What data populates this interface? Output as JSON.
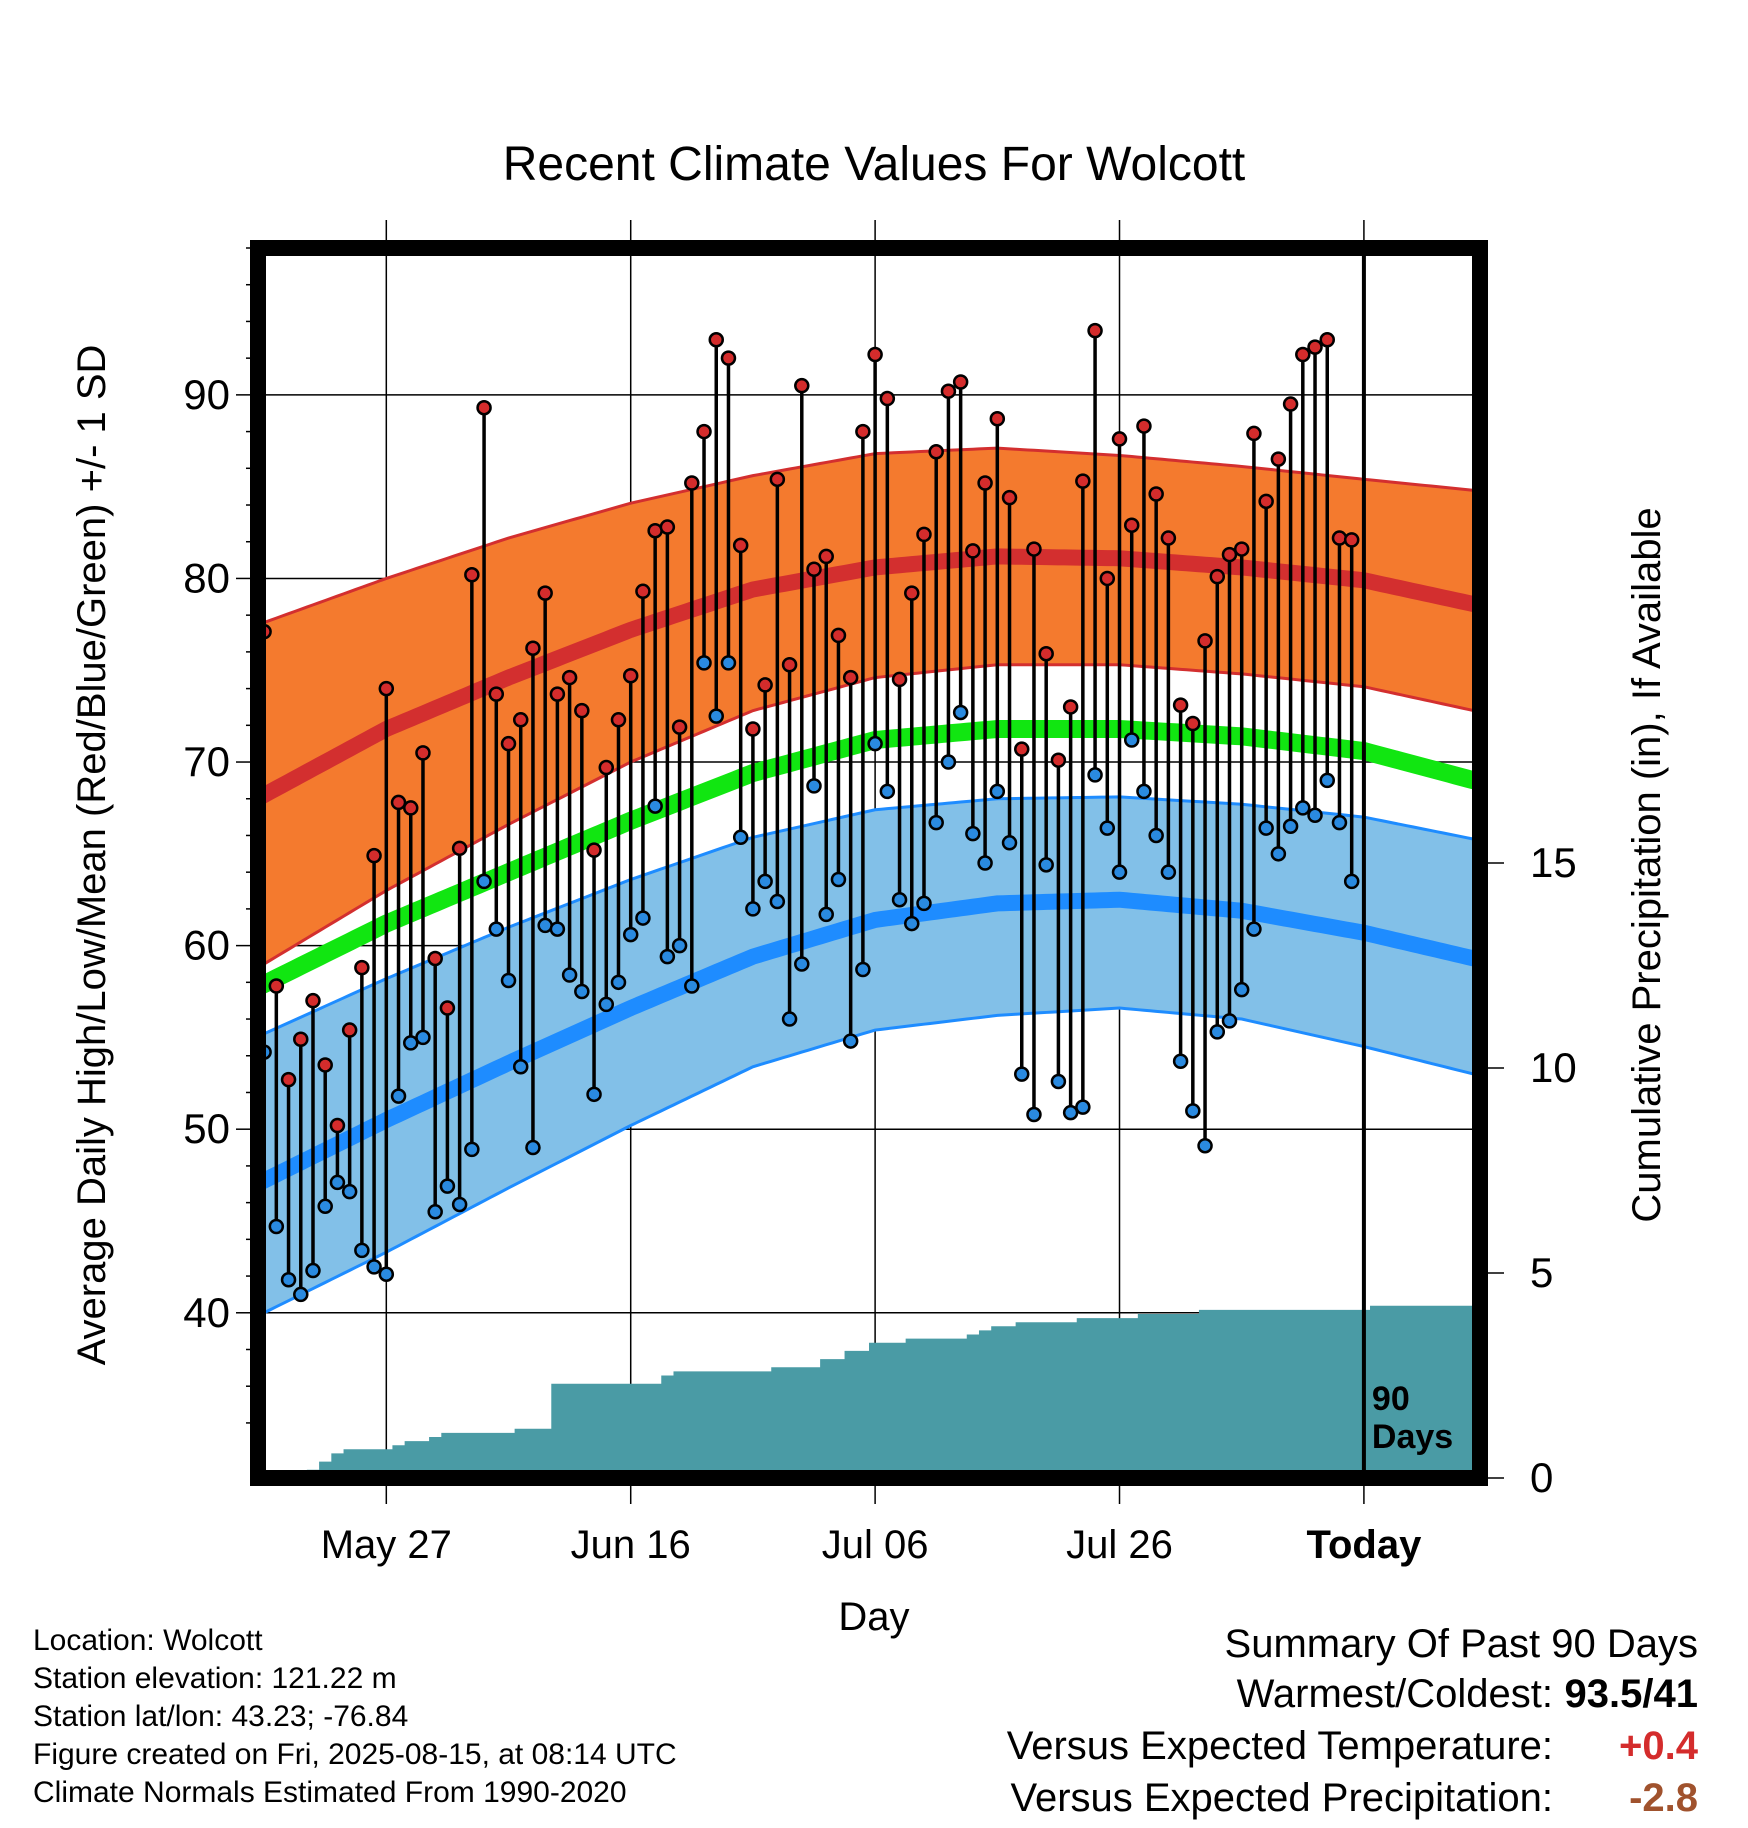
{
  "chart_data": {
    "type": "line",
    "title": "Recent Climate Values For Wolcott",
    "xlabel": "Day",
    "ylabel": "Average Daily High/Low/Mean (Red/Blue/Green) +/- 1 SD",
    "y2label": "Cumulative Precipitation (in), If Available",
    "x_tick_labels": [
      "May 27",
      "Jun 16",
      "Jul 06",
      "Jul 26",
      "Today"
    ],
    "x_tick_day_offset": [
      10,
      30,
      50,
      70,
      90
    ],
    "days_shown": 100,
    "y_ticks": [
      40,
      50,
      60,
      70,
      80,
      90
    ],
    "ylim": [
      31,
      98
    ],
    "y2_ticks": [
      0,
      5,
      10,
      15
    ],
    "y2lim": [
      0,
      30
    ],
    "today_label": "90\nDays",
    "grid": true,
    "colors": {
      "high_band": "#f47a2e",
      "high_mean": "#d32f2f",
      "low_band": "#82c0e8",
      "low_mean": "#1e8cff",
      "mean": "#11e611",
      "precip": "#4a9ba5",
      "obs_high_dot": "#d42c2c",
      "obs_low_dot": "#2a8ae0"
    },
    "normal_high_mean": [
      [
        0,
        68.2
      ],
      [
        10,
        71.8
      ],
      [
        20,
        74.6
      ],
      [
        30,
        77.2
      ],
      [
        40,
        79.4
      ],
      [
        50,
        80.6
      ],
      [
        60,
        81.2
      ],
      [
        70,
        81.1
      ],
      [
        80,
        80.6
      ],
      [
        90,
        79.9
      ],
      [
        99,
        78.6
      ]
    ],
    "normal_high_upper": [
      [
        0,
        77.6
      ],
      [
        10,
        80.0
      ],
      [
        20,
        82.2
      ],
      [
        30,
        84.1
      ],
      [
        40,
        85.6
      ],
      [
        50,
        86.8
      ],
      [
        60,
        87.1
      ],
      [
        70,
        86.7
      ],
      [
        80,
        86.1
      ],
      [
        90,
        85.4
      ],
      [
        99,
        84.8
      ]
    ],
    "normal_high_lower": [
      [
        0,
        59.0
      ],
      [
        10,
        63.0
      ],
      [
        20,
        66.6
      ],
      [
        30,
        70.0
      ],
      [
        40,
        72.8
      ],
      [
        50,
        74.6
      ],
      [
        60,
        75.3
      ],
      [
        70,
        75.3
      ],
      [
        80,
        74.8
      ],
      [
        90,
        74.1
      ],
      [
        99,
        72.8
      ]
    ],
    "normal_mean": [
      [
        0,
        57.9
      ],
      [
        10,
        61.2
      ],
      [
        20,
        64.0
      ],
      [
        30,
        66.8
      ],
      [
        40,
        69.4
      ],
      [
        50,
        71.2
      ],
      [
        60,
        71.8
      ],
      [
        70,
        71.8
      ],
      [
        80,
        71.4
      ],
      [
        90,
        70.6
      ],
      [
        99,
        69.0
      ]
    ],
    "normal_low_mean": [
      [
        0,
        47.2
      ],
      [
        10,
        50.5
      ],
      [
        20,
        53.6
      ],
      [
        30,
        56.6
      ],
      [
        40,
        59.4
      ],
      [
        50,
        61.4
      ],
      [
        60,
        62.3
      ],
      [
        70,
        62.5
      ],
      [
        80,
        61.9
      ],
      [
        90,
        60.7
      ],
      [
        99,
        59.3
      ]
    ],
    "normal_low_upper": [
      [
        0,
        55.2
      ],
      [
        10,
        58.2
      ],
      [
        20,
        61.0
      ],
      [
        30,
        63.6
      ],
      [
        40,
        65.9
      ],
      [
        50,
        67.4
      ],
      [
        60,
        68.0
      ],
      [
        70,
        68.1
      ],
      [
        80,
        67.7
      ],
      [
        90,
        67.0
      ],
      [
        99,
        65.8
      ]
    ],
    "normal_low_lower": [
      [
        0,
        40.0
      ],
      [
        10,
        43.3
      ],
      [
        20,
        46.8
      ],
      [
        30,
        50.2
      ],
      [
        40,
        53.4
      ],
      [
        50,
        55.4
      ],
      [
        60,
        56.2
      ],
      [
        70,
        56.6
      ],
      [
        80,
        56.0
      ],
      [
        90,
        54.5
      ],
      [
        99,
        53.0
      ]
    ],
    "observed_high": [
      77.1,
      57.8,
      52.7,
      54.9,
      57.0,
      53.5,
      50.2,
      55.4,
      58.8,
      64.9,
      74.0,
      67.8,
      67.5,
      70.5,
      59.3,
      56.6,
      65.3,
      80.2,
      89.3,
      73.7,
      71.0,
      72.3,
      76.2,
      79.2,
      73.7,
      74.6,
      72.8,
      65.2,
      69.7,
      72.3,
      74.7,
      79.3,
      82.6,
      82.8,
      71.9,
      85.2,
      88.0,
      93.0,
      92.0,
      81.8,
      71.8,
      74.2,
      85.4,
      75.3,
      90.5,
      80.5,
      81.2,
      76.9,
      74.6,
      88.0,
      92.2,
      89.8,
      74.5,
      79.2,
      82.4,
      86.9,
      90.2,
      90.7,
      81.5,
      85.2,
      88.7,
      84.4,
      70.7,
      81.6,
      75.9,
      70.1,
      73.0,
      85.3,
      93.5,
      80.0,
      87.6,
      82.9,
      88.3,
      84.6,
      82.2,
      73.1,
      72.1,
      76.6,
      80.1,
      81.3,
      81.6,
      87.9,
      84.2,
      86.5,
      89.5,
      92.2,
      92.6,
      93.0,
      82.2,
      82.1
    ],
    "observed_low": [
      54.2,
      44.7,
      41.8,
      41.0,
      42.3,
      45.8,
      47.1,
      46.6,
      43.4,
      42.5,
      42.1,
      51.8,
      54.7,
      55.0,
      45.5,
      46.9,
      45.9,
      48.9,
      63.5,
      60.9,
      58.1,
      53.4,
      49.0,
      61.1,
      60.9,
      58.4,
      57.5,
      51.9,
      56.8,
      58.0,
      60.6,
      61.5,
      67.6,
      59.4,
      60.0,
      57.8,
      75.4,
      72.5,
      75.4,
      65.9,
      62.0,
      63.5,
      62.4,
      56.0,
      59.0,
      68.7,
      61.7,
      63.6,
      54.8,
      58.7,
      71.0,
      68.4,
      62.5,
      61.2,
      62.3,
      66.7,
      70.0,
      72.7,
      66.1,
      64.5,
      68.4,
      65.6,
      53.0,
      50.8,
      64.4,
      52.6,
      50.9,
      51.2,
      69.3,
      66.4,
      64.0,
      71.2,
      68.4,
      66.0,
      64.0,
      53.7,
      51.0,
      49.1,
      55.3,
      55.9,
      57.6,
      60.9,
      66.4,
      65.0,
      66.5,
      67.5,
      67.1,
      69.0,
      66.7,
      63.5
    ],
    "cumulative_precip_days": [
      3,
      4,
      5,
      6,
      7,
      8,
      9,
      10,
      11,
      12,
      13,
      14,
      15,
      16,
      17,
      18,
      19,
      20,
      21,
      22,
      23,
      24,
      25,
      26,
      27,
      28,
      29,
      30,
      31,
      32,
      33,
      34,
      35,
      36,
      37,
      38,
      39,
      40,
      41,
      42,
      43,
      44,
      45,
      46,
      47,
      48,
      49,
      50,
      51,
      52,
      53,
      54,
      55,
      56,
      57,
      58,
      59,
      60,
      61,
      62,
      63,
      64,
      65,
      66,
      67,
      68,
      69,
      70,
      71,
      72,
      73,
      74,
      75,
      76,
      77,
      78,
      79,
      80,
      81,
      82,
      83,
      84,
      85,
      86,
      87,
      88,
      89,
      90,
      91,
      92,
      93,
      94,
      95,
      96,
      97,
      98,
      99,
      100
    ],
    "cumulative_precip_values": [
      0.0,
      0.2,
      0.4,
      0.6,
      0.7,
      0.7,
      0.7,
      0.7,
      0.8,
      0.9,
      0.9,
      1.0,
      1.1,
      1.1,
      1.1,
      1.1,
      1.1,
      1.1,
      1.2,
      1.2,
      1.2,
      2.3,
      2.3,
      2.3,
      2.3,
      2.3,
      2.3,
      2.3,
      2.3,
      2.3,
      2.5,
      2.6,
      2.6,
      2.6,
      2.6,
      2.6,
      2.6,
      2.6,
      2.6,
      2.7,
      2.7,
      2.7,
      2.7,
      2.9,
      2.9,
      3.1,
      3.1,
      3.3,
      3.3,
      3.3,
      3.4,
      3.4,
      3.4,
      3.4,
      3.4,
      3.5,
      3.6,
      3.7,
      3.7,
      3.8,
      3.8,
      3.8,
      3.8,
      3.8,
      3.9,
      3.9,
      3.9,
      3.9,
      3.9,
      4.0,
      4.0,
      4.0,
      4.0,
      4.0,
      4.1,
      4.1,
      4.1,
      4.1,
      4.1,
      4.1,
      4.1,
      4.1,
      4.1,
      4.1,
      4.1,
      4.1,
      4.1,
      4.1,
      4.2,
      4.2,
      4.2,
      4.2,
      4.2,
      4.2,
      4.2,
      4.2,
      4.2,
      4.2
    ]
  },
  "footer": {
    "location": "Location: Wolcott",
    "elevation": "Station elevation: 121.22 m",
    "latlon": "Station lat/lon: 43.23; -76.84",
    "created": "Figure created on Fri, 2025-08-15, at 08:14 UTC",
    "normals": "Climate Normals Estimated From 1990-2020"
  },
  "summary": {
    "title": "Summary Of Past 90 Days",
    "warm_label": "Warmest/Coldest:",
    "warm_value": "93.5/41",
    "temp_label": "Versus Expected Temperature:",
    "temp_value": "+0.4",
    "prcp_label": "Versus Expected Precipitation:",
    "prcp_value": "-2.8"
  }
}
